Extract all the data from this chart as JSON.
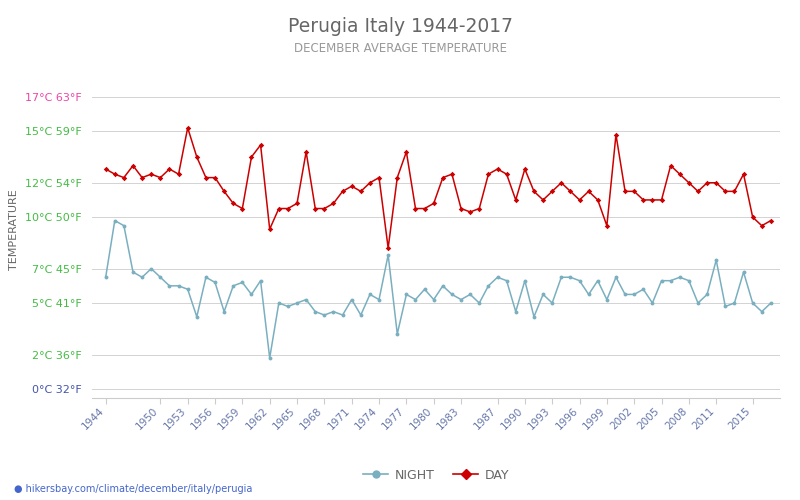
{
  "title": "Perugia Italy 1944-2017",
  "subtitle": "DECEMBER AVERAGE TEMPERATURE",
  "ylabel": "TEMPERATURE",
  "xlabel_url": "hikersbay.com/climate/december/italy/perugia",
  "legend_night": "NIGHT",
  "legend_day": "DAY",
  "ytick_celsius": [
    0,
    2,
    5,
    7,
    10,
    12,
    15,
    17
  ],
  "ytick_fahrenheit": [
    32,
    36,
    41,
    45,
    50,
    54,
    59,
    63
  ],
  "ylim_c": [
    -0.5,
    19.0
  ],
  "day_color": "#cc0000",
  "night_color": "#7aafc0",
  "grid_color": "#cccccc",
  "title_color": "#666666",
  "subtitle_color": "#999999",
  "ylabel_color": "#666666",
  "tick_color_green": "#44bb44",
  "tick_color_pink": "#ee44aa",
  "tick_color_blue": "#4455aa",
  "tick_color_x": "#6677aa",
  "bg_color": "#ffffff",
  "xtick_years": [
    1944,
    1950,
    1953,
    1956,
    1959,
    1962,
    1965,
    1968,
    1971,
    1974,
    1977,
    1980,
    1983,
    1987,
    1990,
    1993,
    1996,
    1999,
    2002,
    2005,
    2008,
    2011,
    2015
  ],
  "url_color": "#4466cc",
  "url_icon_color": "#ee8800",
  "day_data": {
    "1944": 12.8,
    "1945": 12.5,
    "1946": 12.3,
    "1947": 13.0,
    "1948": 12.3,
    "1949": 12.5,
    "1950": 12.3,
    "1951": 12.8,
    "1952": 12.5,
    "1953": 15.2,
    "1954": 13.5,
    "1955": 12.3,
    "1956": 12.3,
    "1957": 11.5,
    "1958": 10.8,
    "1959": 10.5,
    "1960": 13.5,
    "1961": 14.2,
    "1962": 9.3,
    "1963": 10.5,
    "1964": 10.5,
    "1965": 10.8,
    "1966": 13.8,
    "1967": 10.5,
    "1968": 10.5,
    "1969": 10.8,
    "1970": 11.5,
    "1971": 11.8,
    "1972": 11.5,
    "1973": 12.0,
    "1974": 12.3,
    "1975": 8.2,
    "1976": 12.3,
    "1977": 13.8,
    "1978": 10.5,
    "1979": 10.5,
    "1980": 10.8,
    "1981": 12.3,
    "1982": 12.5,
    "1983": 10.5,
    "1984": 10.3,
    "1985": 10.5,
    "1986": 12.5,
    "1987": 12.8,
    "1988": 12.5,
    "1989": 11.0,
    "1990": 12.8,
    "1991": 11.5,
    "1992": 11.0,
    "1993": 11.5,
    "1994": 12.0,
    "1995": 11.5,
    "1996": 11.0,
    "1997": 11.5,
    "1998": 11.0,
    "1999": 9.5,
    "2000": 14.8,
    "2001": 11.5,
    "2002": 11.5,
    "2003": 11.0,
    "2004": 11.0,
    "2005": 11.0,
    "2006": 13.0,
    "2007": 12.5,
    "2008": 12.0,
    "2009": 11.5,
    "2010": 12.0,
    "2011": 12.0,
    "2012": 11.5,
    "2013": 11.5,
    "2014": 12.5,
    "2015": 10.0,
    "2016": 9.5,
    "2017": 9.8
  },
  "night_data": {
    "1944": 6.5,
    "1945": 9.8,
    "1946": 9.5,
    "1947": 6.8,
    "1948": 6.5,
    "1949": 7.0,
    "1950": 6.5,
    "1951": 6.0,
    "1952": 6.0,
    "1953": 5.8,
    "1954": 4.2,
    "1955": 6.5,
    "1956": 6.2,
    "1957": 4.5,
    "1958": 6.0,
    "1959": 6.2,
    "1960": 5.5,
    "1961": 6.3,
    "1962": 1.8,
    "1963": 5.0,
    "1964": 4.8,
    "1965": 5.0,
    "1966": 5.2,
    "1967": 4.5,
    "1968": 4.3,
    "1969": 4.5,
    "1970": 4.3,
    "1971": 5.2,
    "1972": 4.3,
    "1973": 5.5,
    "1974": 5.2,
    "1975": 7.8,
    "1976": 3.2,
    "1977": 5.5,
    "1978": 5.2,
    "1979": 5.8,
    "1980": 5.2,
    "1981": 6.0,
    "1982": 5.5,
    "1983": 5.2,
    "1984": 5.5,
    "1985": 5.0,
    "1986": 6.0,
    "1987": 6.5,
    "1988": 6.3,
    "1989": 4.5,
    "1990": 6.3,
    "1991": 4.2,
    "1992": 5.5,
    "1993": 5.0,
    "1994": 6.5,
    "1995": 6.5,
    "1996": 6.3,
    "1997": 5.5,
    "1998": 6.3,
    "1999": 5.2,
    "2000": 6.5,
    "2001": 5.5,
    "2002": 5.5,
    "2003": 5.8,
    "2004": 5.0,
    "2005": 6.3,
    "2006": 6.3,
    "2007": 6.5,
    "2008": 6.3,
    "2009": 5.0,
    "2010": 5.5,
    "2011": 7.5,
    "2012": 4.8,
    "2013": 5.0,
    "2014": 6.8,
    "2015": 5.0,
    "2016": 4.5,
    "2017": 5.0
  }
}
